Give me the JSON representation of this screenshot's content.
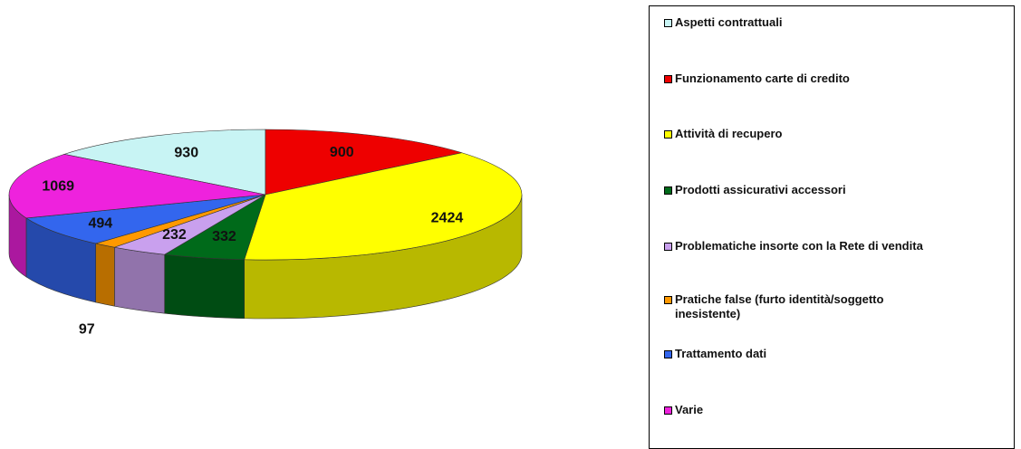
{
  "chart_data": {
    "type": "pie",
    "categories": [
      "Aspetti contrattuali",
      "Funzionamento carte di credito",
      "Attività di recupero",
      "Prodotti assicurativi accessori",
      "Problematiche insorte con la Rete di vendita",
      "Pratiche false (furto identità/soggetto inesistente)",
      "Trattamento dati",
      "Varie"
    ],
    "values": [
      930,
      900,
      2424,
      332,
      232,
      97,
      494,
      1069
    ],
    "colors": [
      "#c8f4f4",
      "#ee0000",
      "#ffff00",
      "#006a1a",
      "#c9a0ee",
      "#ff9900",
      "#3366ee",
      "#ee22dd"
    ],
    "legend": "right"
  }
}
